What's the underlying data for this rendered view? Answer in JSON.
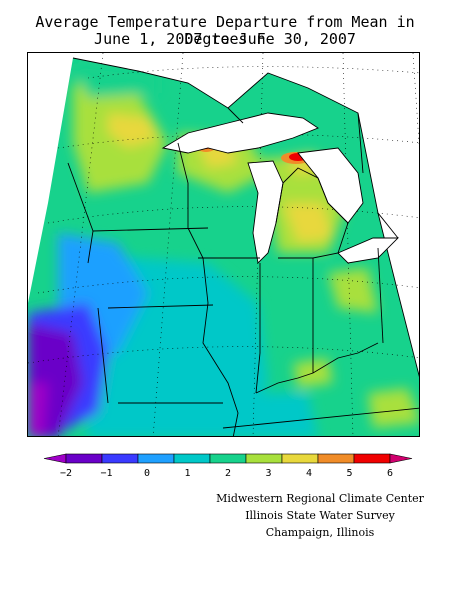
{
  "title_line1": "Average Temperature Departure from Mean in Degrees F",
  "title_line2": "June 1, 2007 to June 30, 2007",
  "legend": {
    "ticks": [
      "−2",
      "−1",
      "0",
      "1",
      "2",
      "3",
      "4",
      "5",
      "6"
    ],
    "colors": [
      "#6a00c8",
      "#3a3aff",
      "#1fa0ff",
      "#00c8c8",
      "#17d28c",
      "#a8e03c",
      "#e8d83c",
      "#f08c28",
      "#f00000"
    ],
    "under_color": "#a000c8",
    "over_color": "#d0006e"
  },
  "credits": {
    "line1": "Midwestern Regional Climate Center",
    "line2": "Illinois State Water Survey",
    "line3": "Champaign, Illinois"
  }
}
